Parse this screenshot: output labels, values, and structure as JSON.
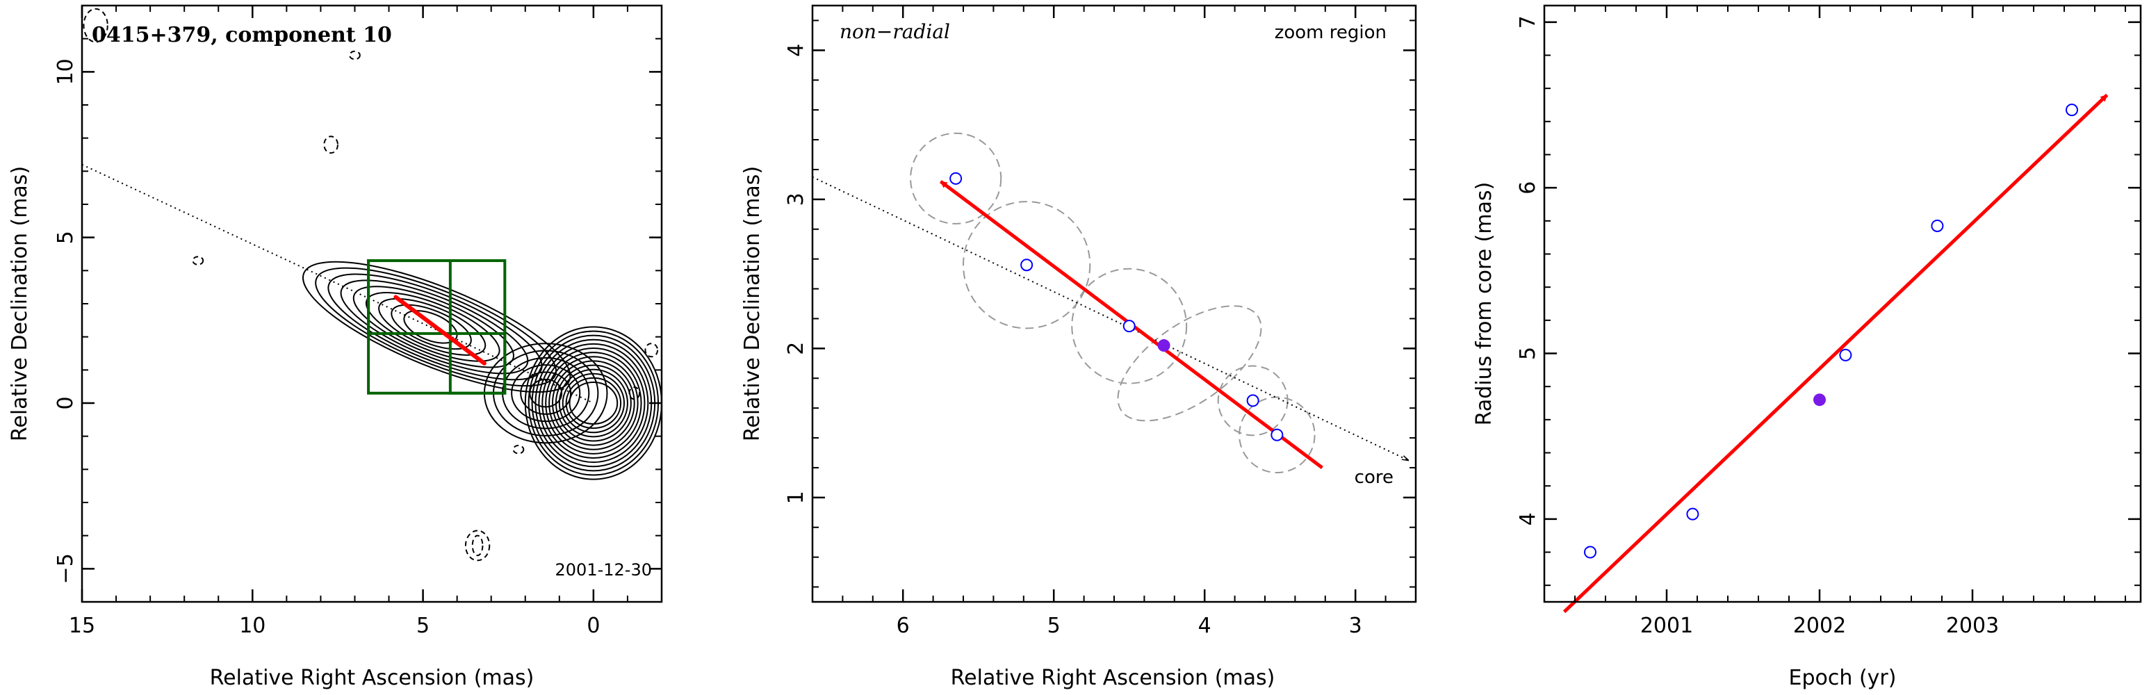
{
  "chart_data": [
    {
      "type": "contour",
      "title": "0415+379, component 10",
      "date_label": "2001-12-30",
      "xlabel": "Relative Right Ascension (mas)",
      "ylabel": "Relative Declination (mas)",
      "xlim": [
        15,
        -2
      ],
      "ylim": [
        -6,
        12
      ],
      "xticks": [
        15,
        10,
        5,
        0
      ],
      "yticks": [
        -5,
        0,
        5,
        10
      ],
      "xtick_labels": [
        "15",
        "10",
        "5",
        "0"
      ],
      "ytick_labels": [
        "−5",
        "0",
        "5",
        "10"
      ],
      "colors": {
        "trajectory": "#ff0000",
        "zoom_box": "#006400",
        "contour": "#000000",
        "negative_contour": "#000000",
        "jet_axis": "#000000"
      },
      "jet_axis": {
        "from": [
          15,
          7.2
        ],
        "to": [
          0,
          0
        ]
      },
      "trajectory": {
        "from": [
          5.8,
          3.2
        ],
        "to": [
          3.2,
          1.2
        ]
      },
      "zoom_boxes": [
        {
          "x": [
            6.6,
            2.6
          ],
          "y": [
            0.3,
            4.3
          ]
        },
        {
          "x": [
            6.6,
            4.2
          ],
          "y": [
            2.1,
            4.3
          ]
        },
        {
          "x": [
            4.2,
            2.6
          ],
          "y": [
            0.3,
            2.1
          ]
        }
      ]
    },
    {
      "type": "scatter",
      "label": "non−radial",
      "region_label": "zoom region",
      "core_label": "core",
      "xlabel": "Relative Right Ascension (mas)",
      "ylabel": "Relative Declination (mas)",
      "xlim": [
        6.6,
        2.6
      ],
      "ylim": [
        0.3,
        4.3
      ],
      "xticks": [
        6,
        5,
        4,
        3
      ],
      "yticks": [
        1,
        2,
        3,
        4
      ],
      "xtick_labels": [
        "6",
        "5",
        "4",
        "3"
      ],
      "ytick_labels": [
        "1",
        "2",
        "3",
        "4"
      ],
      "colors": {
        "points": "#0000ff",
        "highlight": "#7a1ae8",
        "trajectory": "#ff0000",
        "uncertainty_circles": "#999999",
        "jet_axis": "#000000"
      },
      "points": {
        "x": [
          5.65,
          5.18,
          4.5,
          3.68,
          3.52
        ],
        "y": [
          3.14,
          2.56,
          2.15,
          1.65,
          1.42
        ],
        "radii": [
          0.3,
          0.42,
          0.38,
          0.23,
          0.25
        ]
      },
      "highlight_point": {
        "x": 4.27,
        "y": 2.02
      },
      "highlight_ellipse": {
        "x": 4.1,
        "y": 1.9,
        "rx": 0.55,
        "ry": 0.26,
        "angle_deg": -35
      },
      "jet_axis": {
        "from": [
          6.6,
          3.15
        ],
        "to": [
          2.65,
          1.25
        ]
      },
      "trajectory": {
        "from": [
          3.22,
          1.2
        ],
        "to": [
          5.75,
          3.12
        ]
      }
    },
    {
      "type": "scatter",
      "xlabel": "Epoch (yr)",
      "ylabel": "Radius from core (mas)",
      "xlim": [
        2000.2,
        2004.1
      ],
      "ylim": [
        3.5,
        7.1
      ],
      "xticks": [
        2001,
        2002,
        2003
      ],
      "yticks": [
        4,
        5,
        6,
        7
      ],
      "xtick_labels": [
        "2001",
        "2002",
        "2003"
      ],
      "ytick_labels": [
        "4",
        "5",
        "6",
        "7"
      ],
      "colors": {
        "points": "#0000ff",
        "highlight": "#7a1ae8",
        "fit_line": "#ff0000"
      },
      "points": {
        "x": [
          2000.5,
          2001.17,
          2002.17,
          2002.77,
          2003.65
        ],
        "y": [
          3.8,
          4.03,
          4.99,
          5.77,
          6.47
        ]
      },
      "highlight_point": {
        "x": 2002.0,
        "y": 4.72
      },
      "fit_line": {
        "from": [
          2000.33,
          3.44
        ],
        "to": [
          2003.88,
          6.56
        ]
      }
    }
  ]
}
